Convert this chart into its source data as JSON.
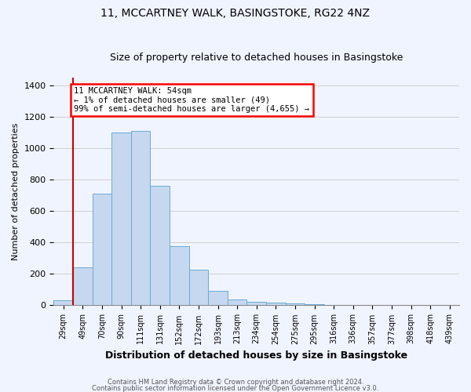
{
  "title": "11, MCCARTNEY WALK, BASINGSTOKE, RG22 4NZ",
  "subtitle": "Size of property relative to detached houses in Basingstoke",
  "xlabel": "Distribution of detached houses by size in Basingstoke",
  "ylabel": "Number of detached properties",
  "bar_labels": [
    "29sqm",
    "49sqm",
    "70sqm",
    "90sqm",
    "111sqm",
    "131sqm",
    "152sqm",
    "172sqm",
    "193sqm",
    "213sqm",
    "234sqm",
    "254sqm",
    "275sqm",
    "295sqm",
    "316sqm",
    "336sqm",
    "357sqm",
    "377sqm",
    "398sqm",
    "418sqm",
    "439sqm"
  ],
  "bar_heights": [
    30,
    240,
    710,
    1100,
    1110,
    760,
    375,
    225,
    90,
    35,
    20,
    15,
    10,
    5,
    2,
    2,
    1,
    0,
    0,
    0,
    0
  ],
  "bar_color": "#c5d8f0",
  "bar_edgecolor": "#6aaad4",
  "annotation_title": "11 MCCARTNEY WALK: 54sqm",
  "annotation_line1": "← 1% of detached houses are smaller (49)",
  "annotation_line2": "99% of semi-detached houses are larger (4,655) →",
  "annotation_box_edgecolor": "red",
  "vline_color": "#cc0000",
  "ylim": [
    0,
    1450
  ],
  "yticks": [
    0,
    200,
    400,
    600,
    800,
    1000,
    1200,
    1400
  ],
  "footer1": "Contains HM Land Registry data © Crown copyright and database right 2024.",
  "footer2": "Contains public sector information licensed under the Open Government Licence v3.0.",
  "bg_color": "#f0f4ff"
}
